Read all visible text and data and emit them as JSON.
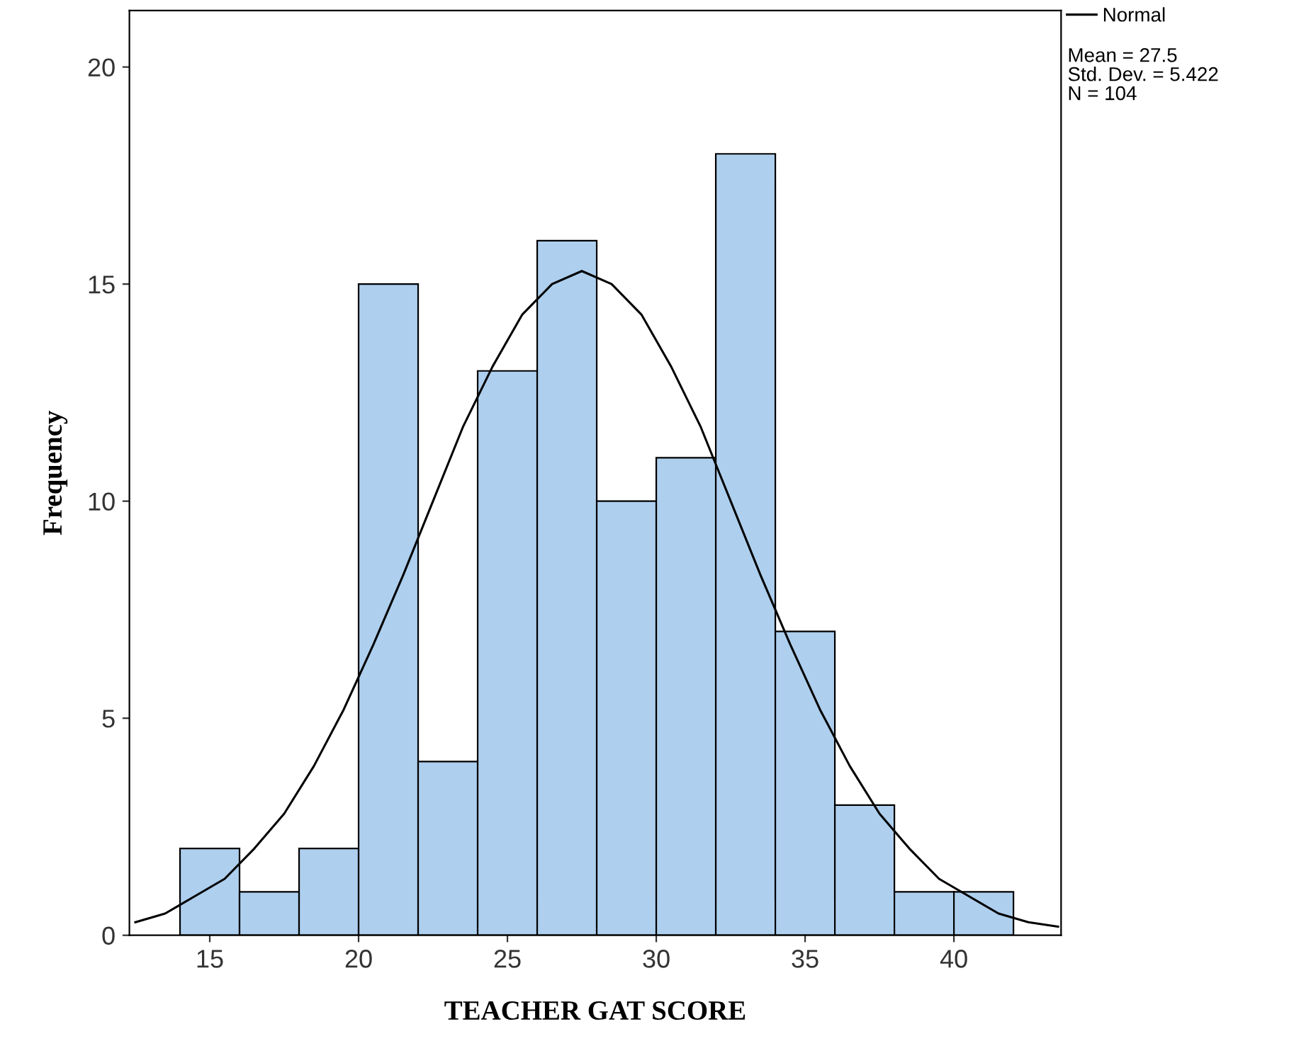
{
  "chart_data": {
    "type": "histogram",
    "xlabel": "TEACHER GAT SCORE",
    "ylabel": "Frequency",
    "bins": [
      14,
      16,
      18,
      20,
      22,
      24,
      26,
      28,
      30,
      32,
      34,
      36,
      38,
      40,
      42
    ],
    "values": [
      2,
      1,
      2,
      15,
      4,
      13,
      16,
      10,
      11,
      18,
      7,
      3,
      1,
      1
    ],
    "color": "#aecfee",
    "series": [
      {
        "type": "line",
        "name": "Normal",
        "color": "#000000",
        "x": [
          12.5,
          13.5,
          14.5,
          15.5,
          16.5,
          17.5,
          18.5,
          19.5,
          20.5,
          21.5,
          22.5,
          23.5,
          24.5,
          25.5,
          26.5,
          27.5,
          28.5,
          29.5,
          30.5,
          31.5,
          32.5,
          33.5,
          34.5,
          35.5,
          36.5,
          37.5,
          38.5,
          39.5,
          40.5,
          41.5,
          42.5,
          43.5
        ],
        "values": [
          0.3,
          0.5,
          0.9,
          1.3,
          2.0,
          2.8,
          3.9,
          5.2,
          6.7,
          8.3,
          10.0,
          11.7,
          13.1,
          14.3,
          15.0,
          15.3,
          15.0,
          14.3,
          13.1,
          11.7,
          10.0,
          8.3,
          6.7,
          5.2,
          3.9,
          2.8,
          2.0,
          1.3,
          0.9,
          0.5,
          0.3,
          0.2
        ]
      }
    ],
    "xlim": [
      12.3,
      43.6
    ],
    "ylim": [
      0,
      21.3
    ],
    "xticks": [
      15,
      20,
      25,
      30,
      35,
      40
    ],
    "yticks": [
      0,
      5,
      10,
      15,
      20
    ],
    "grid": false,
    "legend": "top right",
    "annotations": [
      "Mean = 27.5",
      "Std. Dev. = 5.422",
      "N = 104"
    ]
  }
}
